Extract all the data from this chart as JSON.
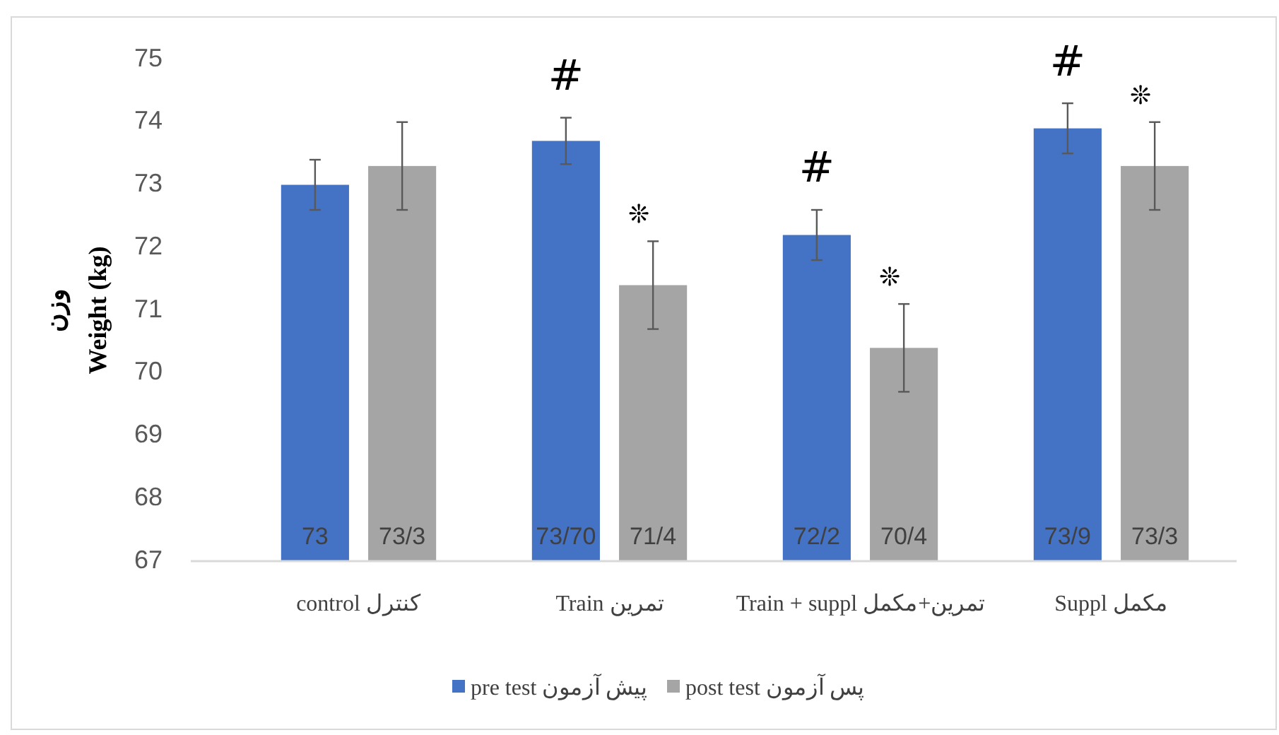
{
  "chart_data": {
    "type": "bar",
    "ylabel": "وزن\nWeight (kg)",
    "categories": [
      "control کنترل",
      "Train تمرین",
      "Train + suppl  تمرین+مکمل",
      "Suppl مکمل"
    ],
    "series": [
      {
        "name": "pre test پیش آزمون",
        "color": "#4472c4",
        "values": [
          73,
          73.7,
          72.2,
          73.9
        ],
        "errors": [
          0.4,
          0.37,
          0.4,
          0.4
        ],
        "value_labels": [
          "73",
          "73/70",
          "72/2",
          "73/9"
        ]
      },
      {
        "name": "post test پس آزمون",
        "color": "#a5a5a5",
        "values": [
          73.3,
          71.4,
          70.4,
          73.3
        ],
        "errors": [
          0.7,
          0.7,
          0.7,
          0.7
        ],
        "value_labels": [
          "73/3",
          "71/4",
          "70/4",
          "73/3"
        ]
      }
    ],
    "ylim": [
      67,
      75
    ],
    "yticks": [
      67,
      68,
      69,
      70,
      71,
      72,
      73,
      74,
      75
    ],
    "grid": false,
    "legend": "bottom",
    "annotations": [
      "#",
      "❊",
      "#",
      "❊",
      "#",
      "❊"
    ]
  }
}
